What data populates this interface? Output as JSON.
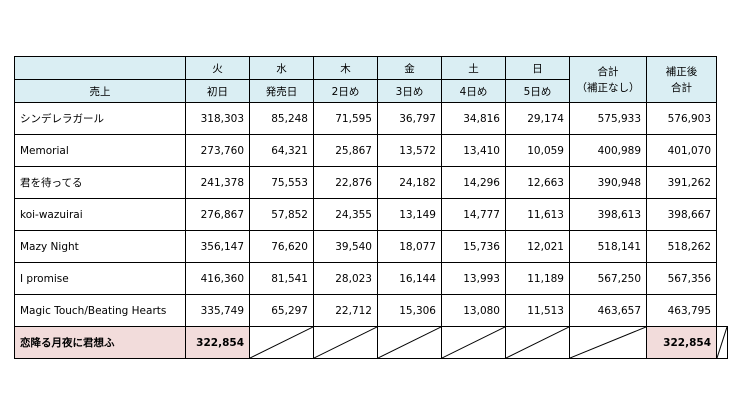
{
  "header": {
    "sales_label": "売上",
    "weekdays": [
      "火",
      "水",
      "木",
      "金",
      "土",
      "日"
    ],
    "days": [
      "初日",
      "発売日",
      "2日め",
      "3日め",
      "4日め",
      "5日め"
    ],
    "total_top": "合計",
    "total_bottom": "（補正なし）",
    "adjusted_top": "補正後",
    "adjusted_bottom": "合計"
  },
  "rows": [
    {
      "name": "シンデレラガール",
      "values": [
        "318,303",
        "85,248",
        "71,595",
        "36,797",
        "34,816",
        "29,174"
      ],
      "total": "575,933",
      "adjusted": "576,903"
    },
    {
      "name": "Memorial",
      "values": [
        "273,760",
        "64,321",
        "25,867",
        "13,572",
        "13,410",
        "10,059"
      ],
      "total": "400,989",
      "adjusted": "401,070"
    },
    {
      "name": "君を待ってる",
      "values": [
        "241,378",
        "75,553",
        "22,876",
        "24,182",
        "14,296",
        "12,663"
      ],
      "total": "390,948",
      "adjusted": "391,262"
    },
    {
      "name": "koi-wazuirai",
      "values": [
        "276,867",
        "57,852",
        "24,355",
        "13,149",
        "14,777",
        "11,613"
      ],
      "total": "398,613",
      "adjusted": "398,667"
    },
    {
      "name": "Mazy Night",
      "values": [
        "356,147",
        "76,620",
        "39,540",
        "18,077",
        "15,736",
        "12,021"
      ],
      "total": "518,141",
      "adjusted": "518,262"
    },
    {
      "name": "I promise",
      "values": [
        "416,360",
        "81,541",
        "28,023",
        "16,144",
        "13,993",
        "11,189"
      ],
      "total": "567,250",
      "adjusted": "567,356"
    },
    {
      "name": "Magic Touch/Beating Hearts",
      "values": [
        "335,749",
        "65,297",
        "22,712",
        "15,306",
        "13,080",
        "11,513"
      ],
      "total": "463,657",
      "adjusted": "463,795"
    }
  ],
  "highlight_row": {
    "name": "恋降る月夜に君想ふ",
    "first_day": "322,854",
    "total": "322,854"
  }
}
